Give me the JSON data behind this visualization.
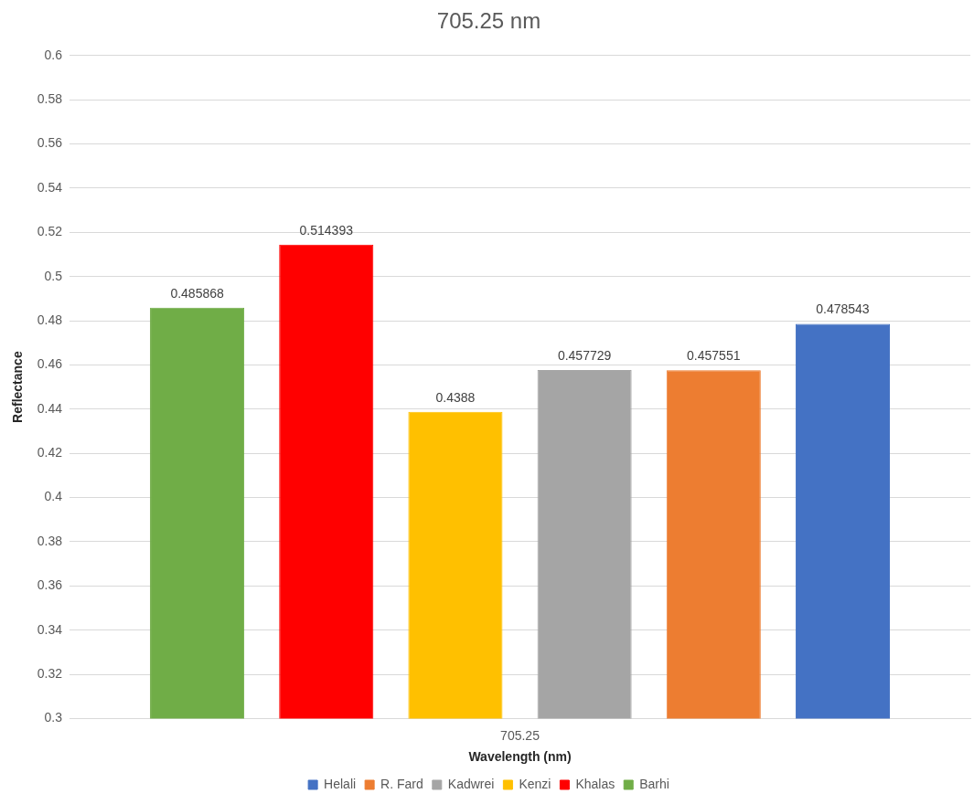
{
  "chart_data": {
    "type": "bar",
    "title": "705.25 nm",
    "xlabel": "Wavelength (nm)",
    "ylabel": "Reflectance",
    "categories": [
      "705.25"
    ],
    "series": [
      {
        "name": "Barhi",
        "color": "#70ad47",
        "values": [
          0.485868
        ]
      },
      {
        "name": "Khalas",
        "color": "#ff0000",
        "values": [
          0.514393
        ]
      },
      {
        "name": "Kenzi",
        "color": "#ffc000",
        "values": [
          0.4388
        ]
      },
      {
        "name": "Kadwrei",
        "color": "#a5a5a5",
        "values": [
          0.457729
        ]
      },
      {
        "name": "R. Fard",
        "color": "#ed7d31",
        "values": [
          0.457551
        ]
      },
      {
        "name": "Helali",
        "color": "#4472c4",
        "values": [
          0.478543
        ]
      }
    ],
    "ylim": [
      0.3,
      0.6
    ],
    "yticks": [
      0.3,
      0.32,
      0.34,
      0.36,
      0.38,
      0.4,
      0.42,
      0.44,
      0.46,
      0.48,
      0.5,
      0.52,
      0.54,
      0.56,
      0.58,
      0.6
    ],
    "grid": "y",
    "legend": "bottom",
    "data_labels": true
  }
}
